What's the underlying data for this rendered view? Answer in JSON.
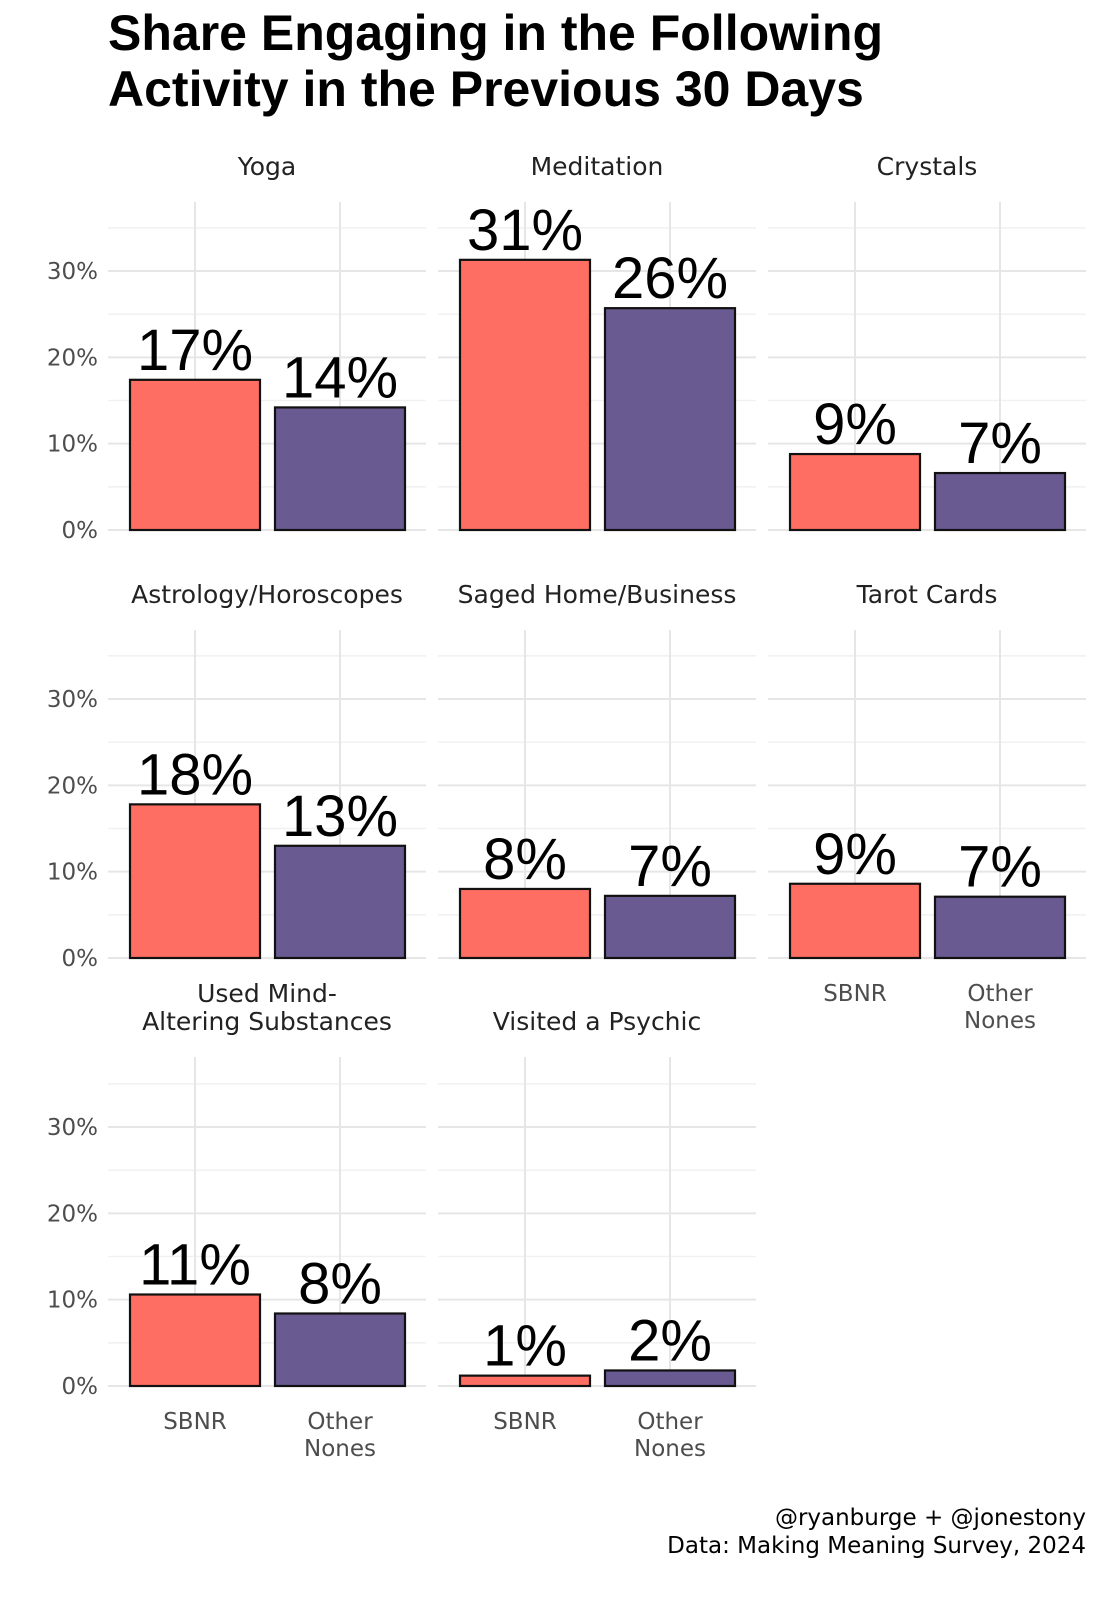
{
  "title_lines": [
    "Share Engaging in the Following",
    "Activity in the Previous 30 Days"
  ],
  "caption_lines": [
    "@ryanburge + @jonestony",
    "Data: Making Meaning Survey, 2024"
  ],
  "colors": {
    "SBNR": "#ff6e62",
    "Other Nones": "#6a5a92"
  },
  "chart_data": {
    "type": "bar",
    "title": "Share Engaging in the Following Activity in the Previous 30 Days",
    "categories": [
      "SBNR",
      "Other Nones"
    ],
    "ylim": [
      0,
      0.38
    ],
    "yticks": [
      0,
      0.1,
      0.2,
      0.3
    ],
    "ytick_labels": [
      "0%",
      "10%",
      "20%",
      "30%"
    ],
    "grid": true,
    "facets": [
      {
        "name": "Yoga",
        "values": [
          0.174,
          0.142
        ],
        "labels": [
          "17%",
          "14%"
        ]
      },
      {
        "name": "Meditation",
        "values": [
          0.313,
          0.257
        ],
        "labels": [
          "31%",
          "26%"
        ]
      },
      {
        "name": "Crystals",
        "values": [
          0.088,
          0.066
        ],
        "labels": [
          "9%",
          "7%"
        ]
      },
      {
        "name": "Astrology/Horoscopes",
        "values": [
          0.178,
          0.13
        ],
        "labels": [
          "18%",
          "13%"
        ]
      },
      {
        "name": "Saged Home/Business",
        "values": [
          0.08,
          0.072
        ],
        "labels": [
          "8%",
          "7%"
        ]
      },
      {
        "name": "Tarot Cards",
        "values": [
          0.086,
          0.071
        ],
        "labels": [
          "9%",
          "7%"
        ]
      },
      {
        "name": "Used Mind-\nAltering Substances",
        "values": [
          0.106,
          0.084
        ],
        "labels": [
          "11%",
          "8%"
        ]
      },
      {
        "name": "Visited a Psychic",
        "values": [
          0.012,
          0.018
        ],
        "labels": [
          "1%",
          "2%"
        ]
      }
    ]
  }
}
